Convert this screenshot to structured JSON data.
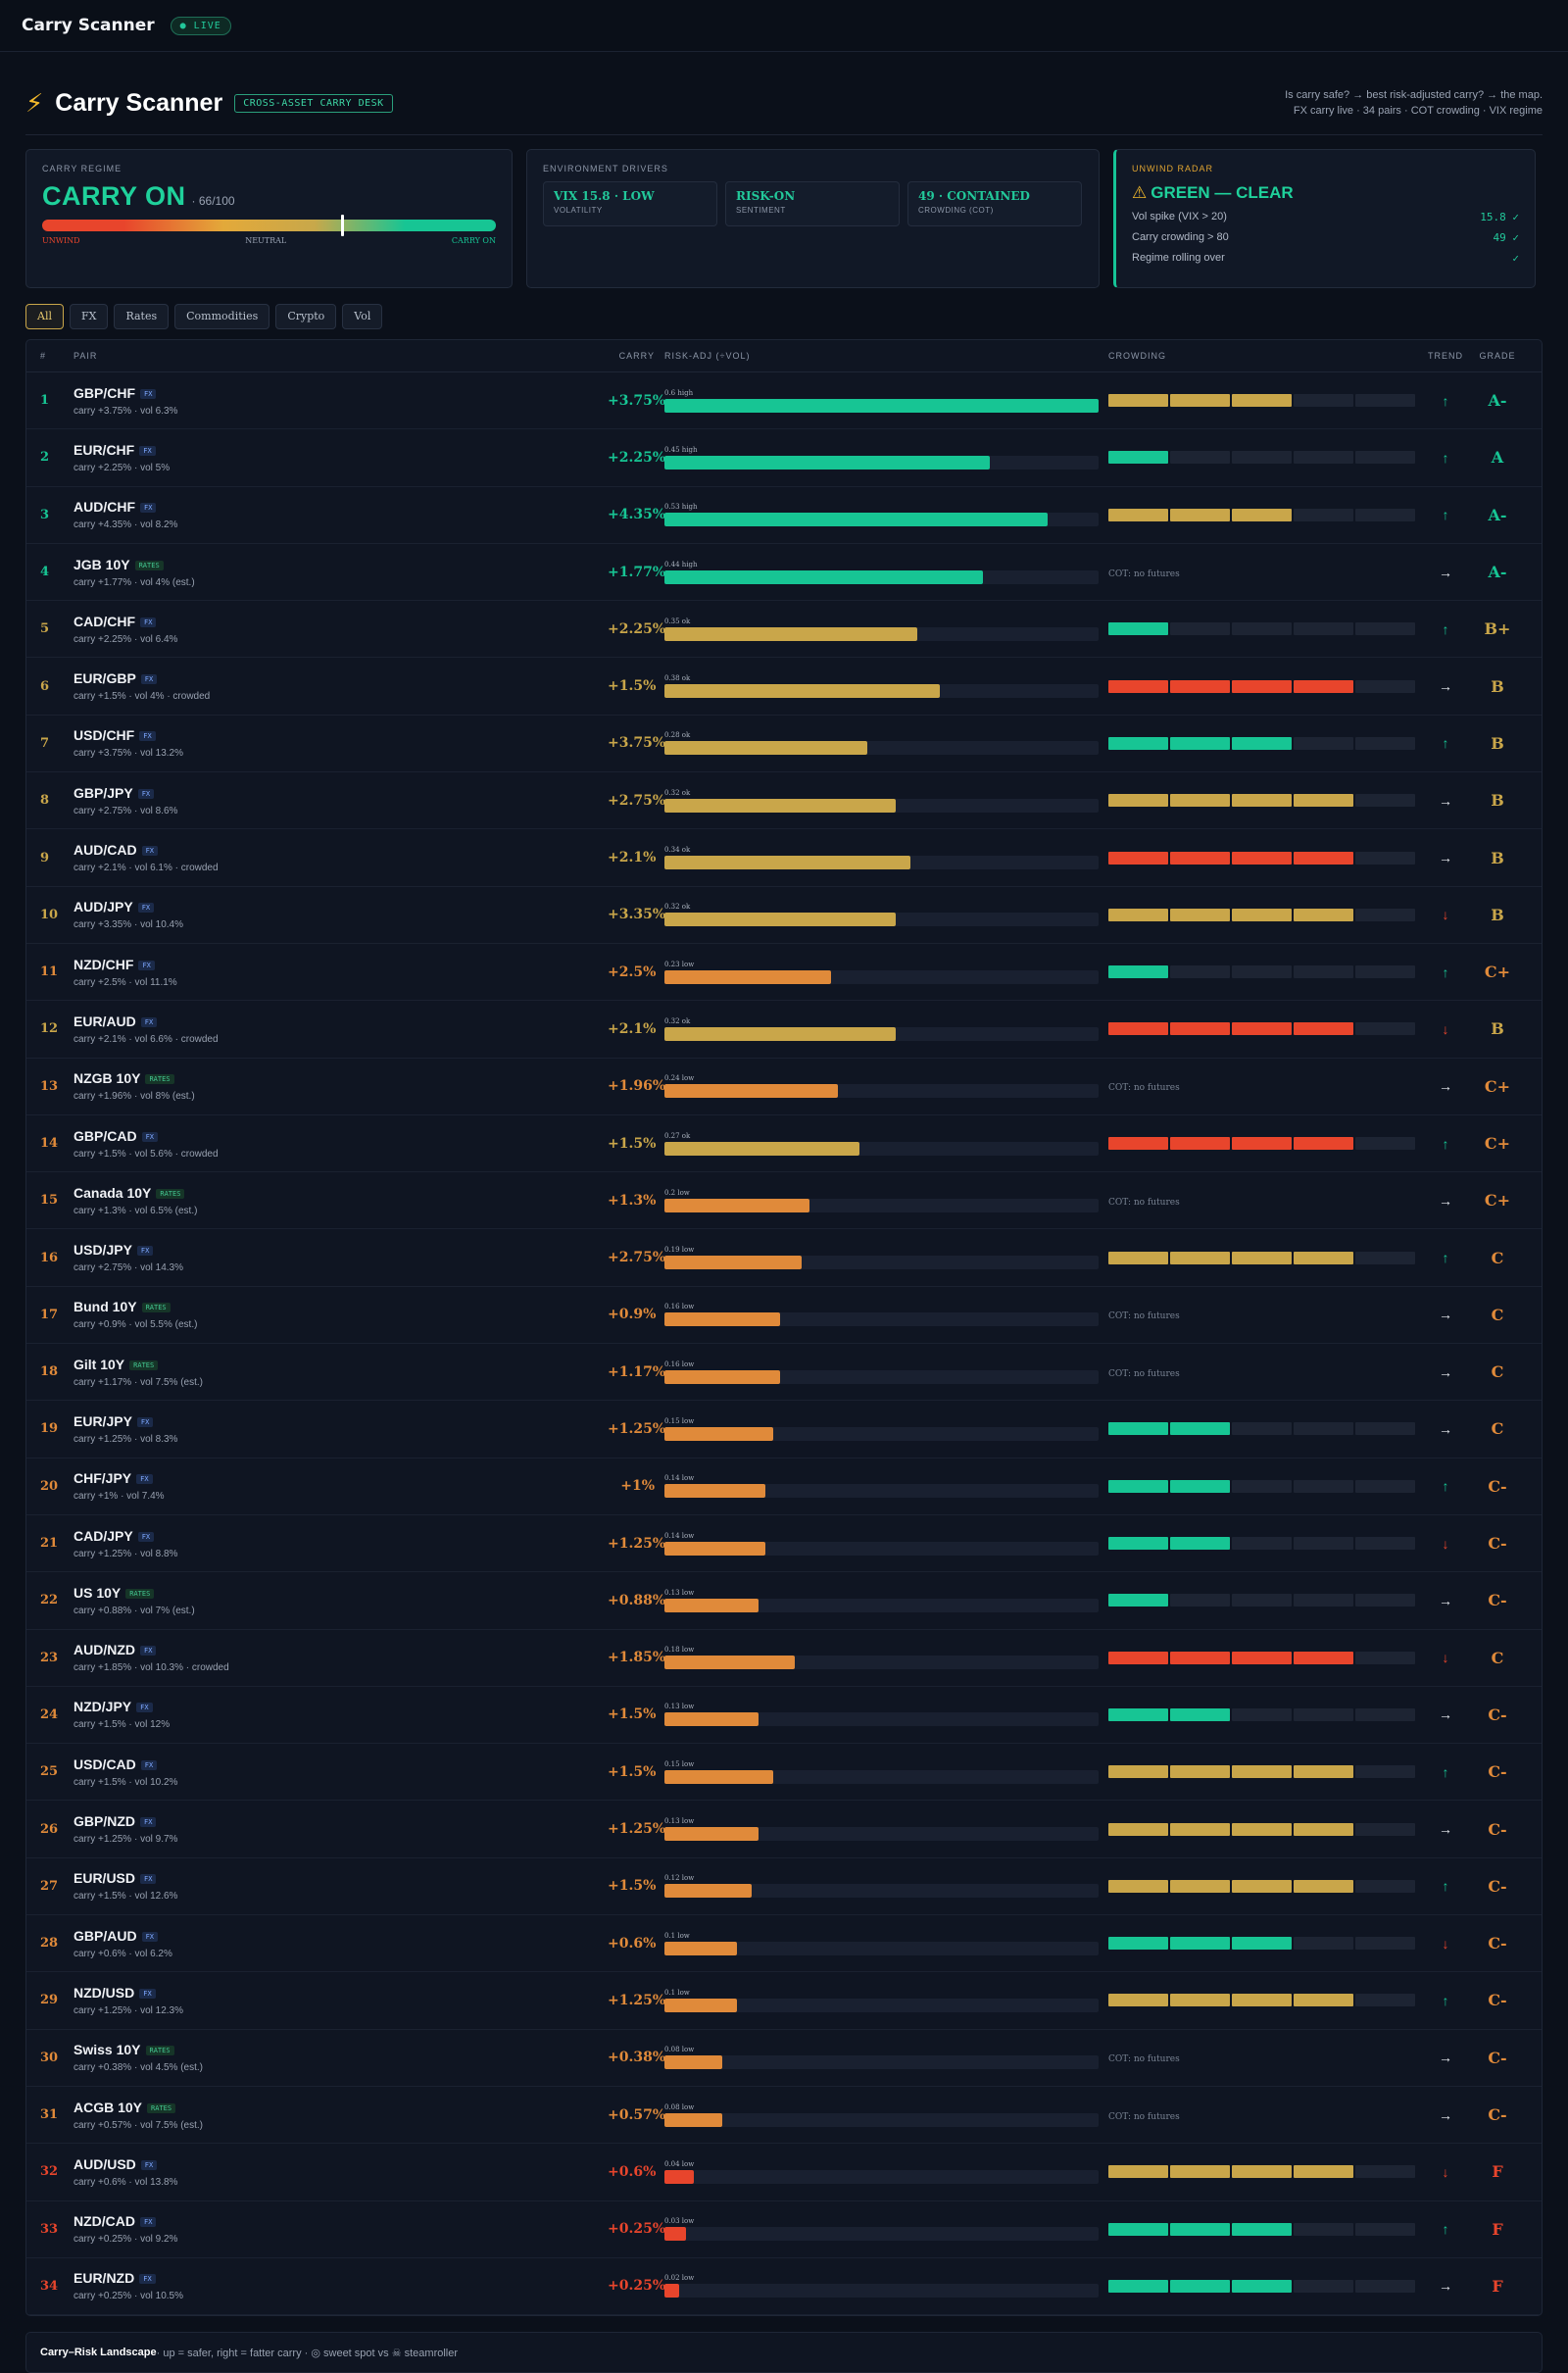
{
  "app": {
    "name": "Carry Scanner",
    "live": "● LIVE"
  },
  "header": {
    "title": "Carry Scanner",
    "badge": "CROSS-ASSET CARRY DESK",
    "tagline1": "Is carry safe? → best risk-adjusted carry? → the map.",
    "tagline2": "FX carry live · 34 pairs · COT crowding · VIX regime"
  },
  "regime": {
    "label": "CARRY REGIME",
    "value": "CARRY ON",
    "score_text": "· 66/100",
    "score": 66,
    "scale": {
      "left": "UNWIND",
      "mid": "NEUTRAL",
      "right": "CARRY ON"
    }
  },
  "env": {
    "label": "ENVIRONMENT DRIVERS",
    "drivers": [
      {
        "value": "VIX 15.8 · LOW",
        "label": "VOLATILITY"
      },
      {
        "value": "RISK-ON",
        "label": "SENTIMENT"
      },
      {
        "value": "49 · CONTAINED",
        "label": "CROWDING (COT)"
      }
    ]
  },
  "radar": {
    "label": "UNWIND RADAR",
    "status": "GREEN — CLEAR",
    "rows": [
      {
        "label": "Vol spike (VIX > 20)",
        "value": "15.8 ✓"
      },
      {
        "label": "Carry crowding > 80",
        "value": "49 ✓"
      },
      {
        "label": "Regime rolling over",
        "value": "✓"
      }
    ]
  },
  "filters": [
    "All",
    "FX",
    "Rates",
    "Commodities",
    "Crypto",
    "Vol"
  ],
  "columns": {
    "num": "#",
    "pair": "PAIR",
    "carry": "CARRY",
    "risk": "RISK-ADJ (÷VOL)",
    "crowd": "CROWDING",
    "trend": "TREND",
    "grade": "GRADE"
  },
  "colors": {
    "green": "#17c594",
    "gold": "#c9a64a",
    "orange": "#e08a3a",
    "red": "#e8452c",
    "empty": "#1d2433"
  },
  "rows": [
    {
      "num": "1",
      "pair": "GBP/CHF",
      "tag": "FX",
      "sub": "carry +3.75% · vol 6.3%",
      "carry": "+3.75%",
      "risk_label": "0.6 high",
      "risk": 0.6,
      "crowd_level": 3,
      "crowd_color": "gold",
      "cot": "",
      "trend": "↑",
      "trend_color": "green",
      "grade": "A-",
      "grade_color": "green"
    },
    {
      "num": "2",
      "pair": "EUR/CHF",
      "tag": "FX",
      "sub": "carry +2.25% · vol 5%",
      "carry": "+2.25%",
      "risk_label": "0.45 high",
      "risk": 0.45,
      "crowd_level": 1,
      "crowd_color": "green",
      "cot": "",
      "trend": "↑",
      "trend_color": "green",
      "grade": "A",
      "grade_color": "green"
    },
    {
      "num": "3",
      "pair": "AUD/CHF",
      "tag": "FX",
      "sub": "carry +4.35% · vol 8.2%",
      "carry": "+4.35%",
      "risk_label": "0.53 high",
      "risk": 0.53,
      "crowd_level": 3,
      "crowd_color": "gold",
      "cot": "",
      "trend": "↑",
      "trend_color": "green",
      "grade": "A-",
      "grade_color": "green"
    },
    {
      "num": "4",
      "pair": "JGB 10Y",
      "tag": "RATES",
      "sub": "carry +1.77% · vol 4% (est.)",
      "carry": "+1.77%",
      "risk_label": "0.44 high",
      "risk": 0.44,
      "crowd_level": 0,
      "crowd_color": "",
      "cot": "COT: no futures",
      "trend": "→",
      "trend_color": "white",
      "grade": "A-",
      "grade_color": "green"
    },
    {
      "num": "5",
      "pair": "CAD/CHF",
      "tag": "FX",
      "sub": "carry +2.25% · vol 6.4%",
      "carry": "+2.25%",
      "risk_label": "0.35 ok",
      "risk": 0.35,
      "crowd_level": 1,
      "crowd_color": "green",
      "cot": "",
      "trend": "↑",
      "trend_color": "green",
      "grade": "B+",
      "grade_color": "gold"
    },
    {
      "num": "6",
      "pair": "EUR/GBP",
      "tag": "FX",
      "sub": "carry +1.5% · vol 4% · crowded",
      "carry": "+1.5%",
      "risk_label": "0.38 ok",
      "risk": 0.38,
      "crowd_level": 4,
      "crowd_color": "red",
      "cot": "",
      "trend": "→",
      "trend_color": "white",
      "grade": "B",
      "grade_color": "gold"
    },
    {
      "num": "7",
      "pair": "USD/CHF",
      "tag": "FX",
      "sub": "carry +3.75% · vol 13.2%",
      "carry": "+3.75%",
      "risk_label": "0.28 ok",
      "risk": 0.28,
      "crowd_level": 3,
      "crowd_color": "green",
      "cot": "",
      "trend": "↑",
      "trend_color": "green",
      "grade": "B",
      "grade_color": "gold"
    },
    {
      "num": "8",
      "pair": "GBP/JPY",
      "tag": "FX",
      "sub": "carry +2.75% · vol 8.6%",
      "carry": "+2.75%",
      "risk_label": "0.32 ok",
      "risk": 0.32,
      "crowd_level": 4,
      "crowd_color": "gold",
      "cot": "",
      "trend": "→",
      "trend_color": "white",
      "grade": "B",
      "grade_color": "gold"
    },
    {
      "num": "9",
      "pair": "AUD/CAD",
      "tag": "FX",
      "sub": "carry +2.1% · vol 6.1% · crowded",
      "carry": "+2.1%",
      "risk_label": "0.34 ok",
      "risk": 0.34,
      "crowd_level": 4,
      "crowd_color": "red",
      "cot": "",
      "trend": "→",
      "trend_color": "white",
      "grade": "B",
      "grade_color": "gold"
    },
    {
      "num": "10",
      "pair": "AUD/JPY",
      "tag": "FX",
      "sub": "carry +3.35% · vol 10.4%",
      "carry": "+3.35%",
      "risk_label": "0.32 ok",
      "risk": 0.32,
      "crowd_level": 4,
      "crowd_color": "gold",
      "cot": "",
      "trend": "↓",
      "trend_color": "red",
      "grade": "B",
      "grade_color": "gold"
    },
    {
      "num": "11",
      "pair": "NZD/CHF",
      "tag": "FX",
      "sub": "carry +2.5% · vol 11.1%",
      "carry": "+2.5%",
      "risk_label": "0.23 low",
      "risk": 0.23,
      "crowd_level": 1,
      "crowd_color": "green",
      "cot": "",
      "trend": "↑",
      "trend_color": "green",
      "grade": "C+",
      "grade_color": "orange"
    },
    {
      "num": "12",
      "pair": "EUR/AUD",
      "tag": "FX",
      "sub": "carry +2.1% · vol 6.6% · crowded",
      "carry": "+2.1%",
      "risk_label": "0.32 ok",
      "risk": 0.32,
      "crowd_level": 4,
      "crowd_color": "red",
      "cot": "",
      "trend": "↓",
      "trend_color": "red",
      "grade": "B",
      "grade_color": "gold"
    },
    {
      "num": "13",
      "pair": "NZGB 10Y",
      "tag": "RATES",
      "sub": "carry +1.96% · vol 8% (est.)",
      "carry": "+1.96%",
      "risk_label": "0.24 low",
      "risk": 0.24,
      "crowd_level": 0,
      "crowd_color": "",
      "cot": "COT: no futures",
      "trend": "→",
      "trend_color": "white",
      "grade": "C+",
      "grade_color": "orange"
    },
    {
      "num": "14",
      "pair": "GBP/CAD",
      "tag": "FX",
      "sub": "carry +1.5% · vol 5.6% · crowded",
      "carry": "+1.5%",
      "risk_label": "0.27 ok",
      "risk": 0.27,
      "crowd_level": 4,
      "crowd_color": "red",
      "cot": "",
      "trend": "↑",
      "trend_color": "green",
      "grade": "C+",
      "grade_color": "orange"
    },
    {
      "num": "15",
      "pair": "Canada 10Y",
      "tag": "RATES",
      "sub": "carry +1.3% · vol 6.5% (est.)",
      "carry": "+1.3%",
      "risk_label": "0.2 low",
      "risk": 0.2,
      "crowd_level": 0,
      "crowd_color": "",
      "cot": "COT: no futures",
      "trend": "→",
      "trend_color": "white",
      "grade": "C+",
      "grade_color": "orange"
    },
    {
      "num": "16",
      "pair": "USD/JPY",
      "tag": "FX",
      "sub": "carry +2.75% · vol 14.3%",
      "carry": "+2.75%",
      "risk_label": "0.19 low",
      "risk": 0.19,
      "crowd_level": 4,
      "crowd_color": "gold",
      "cot": "",
      "trend": "↑",
      "trend_color": "green",
      "grade": "C",
      "grade_color": "orange"
    },
    {
      "num": "17",
      "pair": "Bund 10Y",
      "tag": "RATES",
      "sub": "carry +0.9% · vol 5.5% (est.)",
      "carry": "+0.9%",
      "risk_label": "0.16 low",
      "risk": 0.16,
      "crowd_level": 0,
      "crowd_color": "",
      "cot": "COT: no futures",
      "trend": "→",
      "trend_color": "white",
      "grade": "C",
      "grade_color": "orange"
    },
    {
      "num": "18",
      "pair": "Gilt 10Y",
      "tag": "RATES",
      "sub": "carry +1.17% · vol 7.5% (est.)",
      "carry": "+1.17%",
      "risk_label": "0.16 low",
      "risk": 0.16,
      "crowd_level": 0,
      "crowd_color": "",
      "cot": "COT: no futures",
      "trend": "→",
      "trend_color": "white",
      "grade": "C",
      "grade_color": "orange"
    },
    {
      "num": "19",
      "pair": "EUR/JPY",
      "tag": "FX",
      "sub": "carry +1.25% · vol 8.3%",
      "carry": "+1.25%",
      "risk_label": "0.15 low",
      "risk": 0.15,
      "crowd_level": 2,
      "crowd_color": "green",
      "cot": "",
      "trend": "→",
      "trend_color": "white",
      "grade": "C",
      "grade_color": "orange"
    },
    {
      "num": "20",
      "pair": "CHF/JPY",
      "tag": "FX",
      "sub": "carry +1% · vol 7.4%",
      "carry": "+1%",
      "risk_label": "0.14 low",
      "risk": 0.14,
      "crowd_level": 2,
      "crowd_color": "green",
      "cot": "",
      "trend": "↑",
      "trend_color": "green",
      "grade": "C-",
      "grade_color": "orange"
    },
    {
      "num": "21",
      "pair": "CAD/JPY",
      "tag": "FX",
      "sub": "carry +1.25% · vol 8.8%",
      "carry": "+1.25%",
      "risk_label": "0.14 low",
      "risk": 0.14,
      "crowd_level": 2,
      "crowd_color": "green",
      "cot": "",
      "trend": "↓",
      "trend_color": "red",
      "grade": "C-",
      "grade_color": "orange"
    },
    {
      "num": "22",
      "pair": "US 10Y",
      "tag": "RATES",
      "sub": "carry +0.88% · vol 7% (est.)",
      "carry": "+0.88%",
      "risk_label": "0.13 low",
      "risk": 0.13,
      "crowd_level": 1,
      "crowd_color": "green",
      "cot": "",
      "trend": "→",
      "trend_color": "white",
      "grade": "C-",
      "grade_color": "orange"
    },
    {
      "num": "23",
      "pair": "AUD/NZD",
      "tag": "FX",
      "sub": "carry +1.85% · vol 10.3% · crowded",
      "carry": "+1.85%",
      "risk_label": "0.18 low",
      "risk": 0.18,
      "crowd_level": 4,
      "crowd_color": "red",
      "cot": "",
      "trend": "↓",
      "trend_color": "red",
      "grade": "C",
      "grade_color": "orange"
    },
    {
      "num": "24",
      "pair": "NZD/JPY",
      "tag": "FX",
      "sub": "carry +1.5% · vol 12%",
      "carry": "+1.5%",
      "risk_label": "0.13 low",
      "risk": 0.13,
      "crowd_level": 2,
      "crowd_color": "green",
      "cot": "",
      "trend": "→",
      "trend_color": "white",
      "grade": "C-",
      "grade_color": "orange"
    },
    {
      "num": "25",
      "pair": "USD/CAD",
      "tag": "FX",
      "sub": "carry +1.5% · vol 10.2%",
      "carry": "+1.5%",
      "risk_label": "0.15 low",
      "risk": 0.15,
      "crowd_level": 4,
      "crowd_color": "gold",
      "cot": "",
      "trend": "↑",
      "trend_color": "green",
      "grade": "C-",
      "grade_color": "orange"
    },
    {
      "num": "26",
      "pair": "GBP/NZD",
      "tag": "FX",
      "sub": "carry +1.25% · vol 9.7%",
      "carry": "+1.25%",
      "risk_label": "0.13 low",
      "risk": 0.13,
      "crowd_level": 4,
      "crowd_color": "gold",
      "cot": "",
      "trend": "→",
      "trend_color": "white",
      "grade": "C-",
      "grade_color": "orange"
    },
    {
      "num": "27",
      "pair": "EUR/USD",
      "tag": "FX",
      "sub": "carry +1.5% · vol 12.6%",
      "carry": "+1.5%",
      "risk_label": "0.12 low",
      "risk": 0.12,
      "crowd_level": 4,
      "crowd_color": "gold",
      "cot": "",
      "trend": "↑",
      "trend_color": "green",
      "grade": "C-",
      "grade_color": "orange"
    },
    {
      "num": "28",
      "pair": "GBP/AUD",
      "tag": "FX",
      "sub": "carry +0.6% · vol 6.2%",
      "carry": "+0.6%",
      "risk_label": "0.1 low",
      "risk": 0.1,
      "crowd_level": 3,
      "crowd_color": "green",
      "cot": "",
      "trend": "↓",
      "trend_color": "red",
      "grade": "C-",
      "grade_color": "orange"
    },
    {
      "num": "29",
      "pair": "NZD/USD",
      "tag": "FX",
      "sub": "carry +1.25% · vol 12.3%",
      "carry": "+1.25%",
      "risk_label": "0.1 low",
      "risk": 0.1,
      "crowd_level": 4,
      "crowd_color": "gold",
      "cot": "",
      "trend": "↑",
      "trend_color": "green",
      "grade": "C-",
      "grade_color": "orange"
    },
    {
      "num": "30",
      "pair": "Swiss 10Y",
      "tag": "RATES",
      "sub": "carry +0.38% · vol 4.5% (est.)",
      "carry": "+0.38%",
      "risk_label": "0.08 low",
      "risk": 0.08,
      "crowd_level": 0,
      "crowd_color": "",
      "cot": "COT: no futures",
      "trend": "→",
      "trend_color": "white",
      "grade": "C-",
      "grade_color": "orange"
    },
    {
      "num": "31",
      "pair": "ACGB 10Y",
      "tag": "RATES",
      "sub": "carry +0.57% · vol 7.5% (est.)",
      "carry": "+0.57%",
      "risk_label": "0.08 low",
      "risk": 0.08,
      "crowd_level": 0,
      "crowd_color": "",
      "cot": "COT: no futures",
      "trend": "→",
      "trend_color": "white",
      "grade": "C-",
      "grade_color": "orange"
    },
    {
      "num": "32",
      "pair": "AUD/USD",
      "tag": "FX",
      "sub": "carry +0.6% · vol 13.8%",
      "carry": "+0.6%",
      "risk_label": "0.04 low",
      "risk": 0.04,
      "crowd_level": 4,
      "crowd_color": "gold",
      "cot": "",
      "trend": "↓",
      "trend_color": "red",
      "grade": "F",
      "grade_color": "red"
    },
    {
      "num": "33",
      "pair": "NZD/CAD",
      "tag": "FX",
      "sub": "carry +0.25% · vol 9.2%",
      "carry": "+0.25%",
      "risk_label": "0.03 low",
      "risk": 0.03,
      "crowd_level": 3,
      "crowd_color": "green",
      "cot": "",
      "trend": "↑",
      "trend_color": "green",
      "grade": "F",
      "grade_color": "red"
    },
    {
      "num": "34",
      "pair": "EUR/NZD",
      "tag": "FX",
      "sub": "carry +0.25% · vol 10.5%",
      "carry": "+0.25%",
      "risk_label": "0.02 low",
      "risk": 0.02,
      "crowd_level": 3,
      "crowd_color": "green",
      "cot": "",
      "trend": "→",
      "trend_color": "white",
      "grade": "F",
      "grade_color": "red"
    }
  ],
  "landscape": {
    "title": "Carry–Risk Landscape",
    "text": " · up = safer, right = fatter carry · ◎ sweet spot vs ☠ steamroller"
  }
}
